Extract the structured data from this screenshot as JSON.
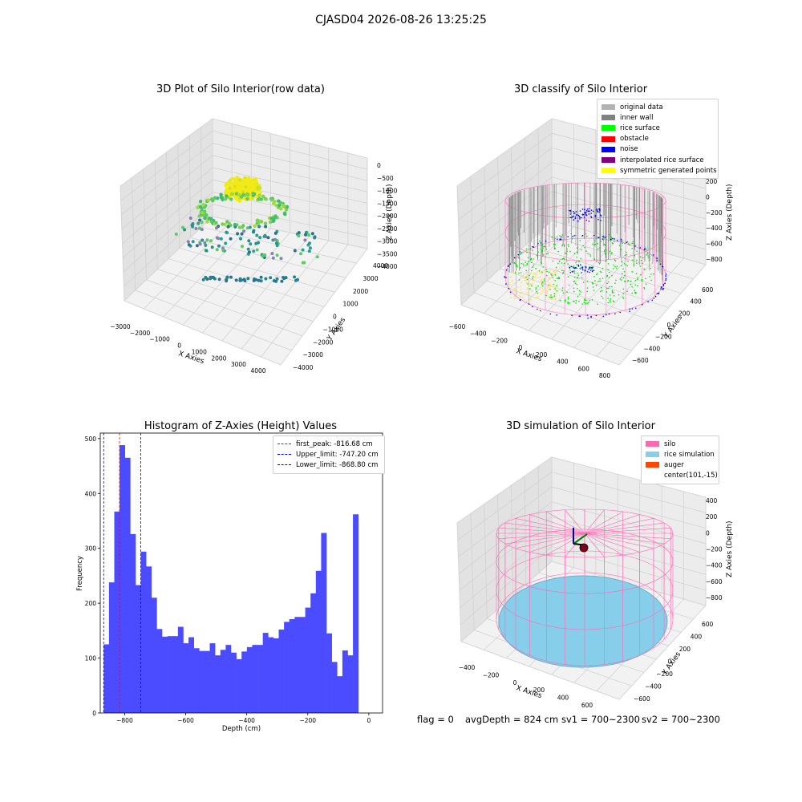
{
  "suptitle": "CJASD04 2026-08-26 13:25:25",
  "colors": {
    "hist_bar": "#4b4bff",
    "first_peak": "#ff0000",
    "limit": "#0000ff",
    "original": "#b3b3b3",
    "inner_wall": "#808080",
    "rice_surface": "#00ff00",
    "obstacle": "#ff0000",
    "noise": "#0000ff",
    "interp": "#800080",
    "symmetric": "#ffff00",
    "silo": "#ff69b4",
    "rice_sim": "#87ceeb",
    "auger": "#ff4500"
  },
  "plot1": {
    "title": "3D Plot of Silo Interior(row data)",
    "x_label": "X Axies",
    "y_label": "Y Axies",
    "z_label": "Z Axies (Depth)",
    "x_ticks": [
      "−3000",
      "−2000",
      "−1000",
      "0",
      "1000",
      "2000",
      "3000",
      "4000"
    ],
    "y_ticks": [
      "−4000",
      "−3000",
      "−2000",
      "−1000",
      "0",
      "1000",
      "2000",
      "3000",
      "4000"
    ],
    "z_ticks": [
      "0",
      "−500",
      "−1000",
      "−1500",
      "−2000",
      "−2500",
      "−3000",
      "−3500",
      "−4000"
    ]
  },
  "plot2": {
    "title": "3D classify of Silo Interior",
    "x_label": "X Axies",
    "y_label": "Y Axies",
    "z_label": "Z Axies (Depth)",
    "x_ticks": [
      "−600",
      "−400",
      "−200",
      "0",
      "200",
      "400",
      "600",
      "800"
    ],
    "y_ticks": [
      "−600",
      "−400",
      "−200",
      "0",
      "200",
      "400",
      "600"
    ],
    "z_ticks": [
      "200",
      "0",
      "−200",
      "−400",
      "−600",
      "−800"
    ],
    "legend": [
      {
        "label": "original data",
        "color": "#b3b3b3"
      },
      {
        "label": "inner wall",
        "color": "#808080"
      },
      {
        "label": "rice surface",
        "color": "#00ff00"
      },
      {
        "label": "obstacle",
        "color": "#ff0000"
      },
      {
        "label": "noise",
        "color": "#0000ff"
      },
      {
        "label": "interpolated rice surface",
        "color": "#800080"
      },
      {
        "label": "symmetric generated points",
        "color": "#ffff00"
      }
    ]
  },
  "chart_data": {
    "type": "bar",
    "title": "Histogram of Z-Axies (Height) Values",
    "xlabel": "Depth (cm)",
    "ylabel": "Frequency",
    "xlim": [
      -880,
      45
    ],
    "ylim": [
      0,
      510
    ],
    "x_ticks": [
      -800,
      -600,
      -400,
      -200,
      0
    ],
    "x_tick_labels": [
      "−800",
      "−600",
      "−400",
      "−200",
      "0"
    ],
    "y_ticks": [
      0,
      100,
      200,
      300,
      400,
      500
    ],
    "bin_start": -868.8,
    "bin_width": 17.38,
    "values": [
      125,
      238,
      367,
      488,
      465,
      326,
      233,
      294,
      267,
      210,
      153,
      139,
      140,
      140,
      157,
      127,
      138,
      118,
      113,
      113,
      127,
      105,
      115,
      124,
      110,
      98,
      112,
      120,
      124,
      124,
      146,
      138,
      136,
      152,
      166,
      171,
      175,
      175,
      192,
      218,
      259,
      328,
      145,
      93,
      67,
      114,
      105,
      362
    ],
    "lines": [
      {
        "name": "first_peak: -816.68 cm",
        "x": -816.68,
        "color": "#ff0000"
      },
      {
        "name": "Upper_limit: -747.20 cm",
        "x": -747.2,
        "color": "#0000ff"
      },
      {
        "name": "Lower_limit: -868.80 cm",
        "x": -868.8,
        "color": "#0000ff"
      }
    ],
    "legend_position": "upper-right"
  },
  "plot4": {
    "title": "3D simulation of Silo Interior",
    "x_label": "X Axies",
    "y_label": "Y Axies",
    "z_label": "Z Axies (Depth)",
    "x_ticks": [
      "−400",
      "−200",
      "0",
      "200",
      "400",
      "600"
    ],
    "y_ticks": [
      "−600",
      "−400",
      "−200",
      "0",
      "200",
      "400",
      "600"
    ],
    "z_ticks": [
      "400",
      "200",
      "0",
      "−200",
      "−400",
      "−600",
      "−800"
    ],
    "legend": [
      {
        "label": "silo",
        "color": "#ff69b4"
      },
      {
        "label": "rice simulation",
        "color": "#87ceeb"
      },
      {
        "label": "auger",
        "color": "#ff4500"
      },
      {
        "label": "center(101,-15)",
        "color": ""
      }
    ]
  },
  "status": {
    "flag": "flag = 0",
    "avg_depth": "avgDepth = 824 cm",
    "sv1": "sv1 = 700~2300",
    "sv2": "sv2 = 700~2300"
  }
}
